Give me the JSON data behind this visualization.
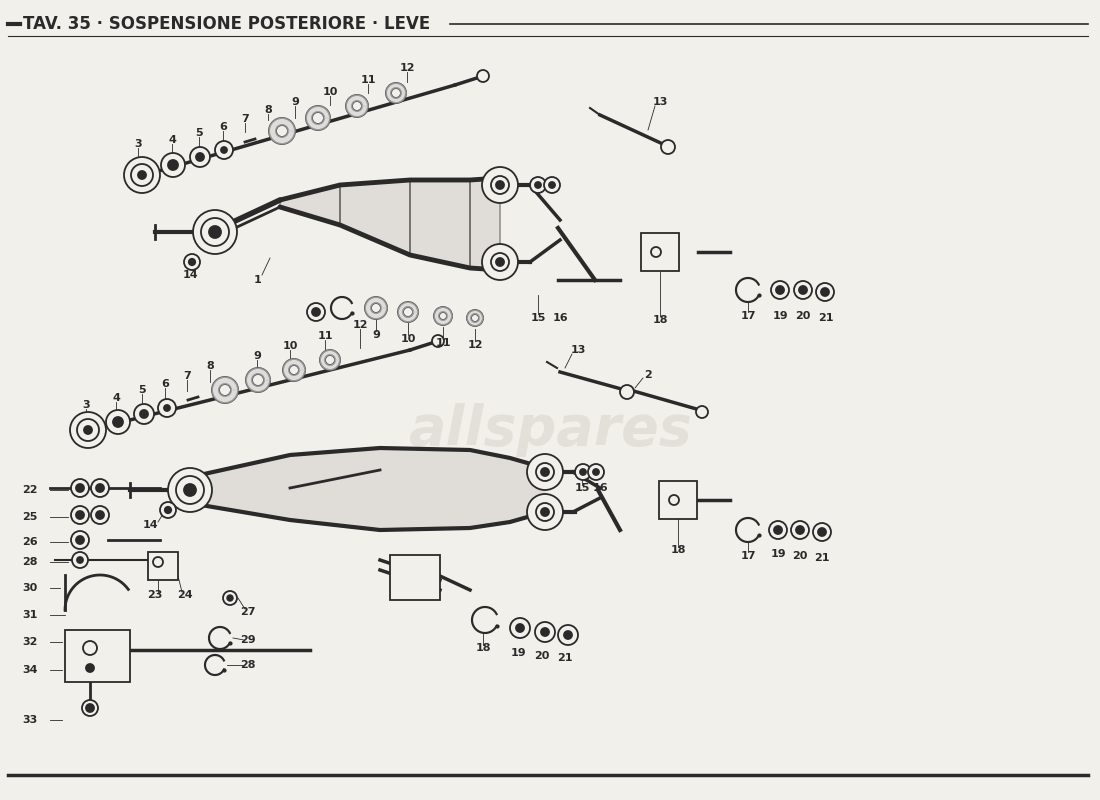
{
  "title": "TAV. 35 · SOSPENSIONE POSTERIORE · LEVE",
  "bg_color": "#f2f0eb",
  "line_color": "#2a2a2a",
  "watermark_text": "allspares",
  "title_fontsize": 12,
  "label_fontsize": 8
}
